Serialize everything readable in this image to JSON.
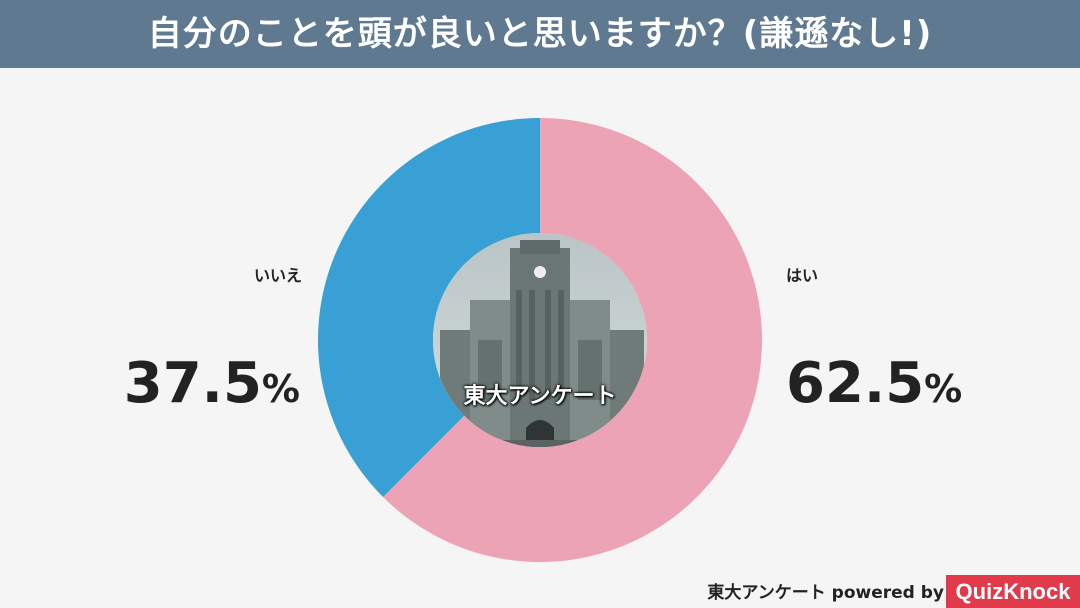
{
  "header": {
    "title": "自分のことを頭が良いと思いますか？(謙遜なし!)"
  },
  "colors": {
    "header_bg": "#5e7990",
    "yes": "#eca3b5",
    "no": "#38a0d4",
    "brand": "#e03a4b"
  },
  "chart_data": {
    "type": "pie",
    "style": "donut",
    "title": "自分のことを頭が良いと思いますか？(謙遜なし!)",
    "categories": [
      "はい",
      "いいえ"
    ],
    "values": [
      62.5,
      37.5
    ],
    "value_labels": [
      "62.5",
      "37.5"
    ],
    "unit": "%",
    "colors": [
      "#eca3b5",
      "#38a0d4"
    ],
    "start": "12 o'clock, clockwise",
    "center_image": "university-clock-tower-photo"
  },
  "center": {
    "label": "東大アンケート"
  },
  "footer": {
    "text": "東大アンケート powered by",
    "brand": "QuizKnock"
  }
}
